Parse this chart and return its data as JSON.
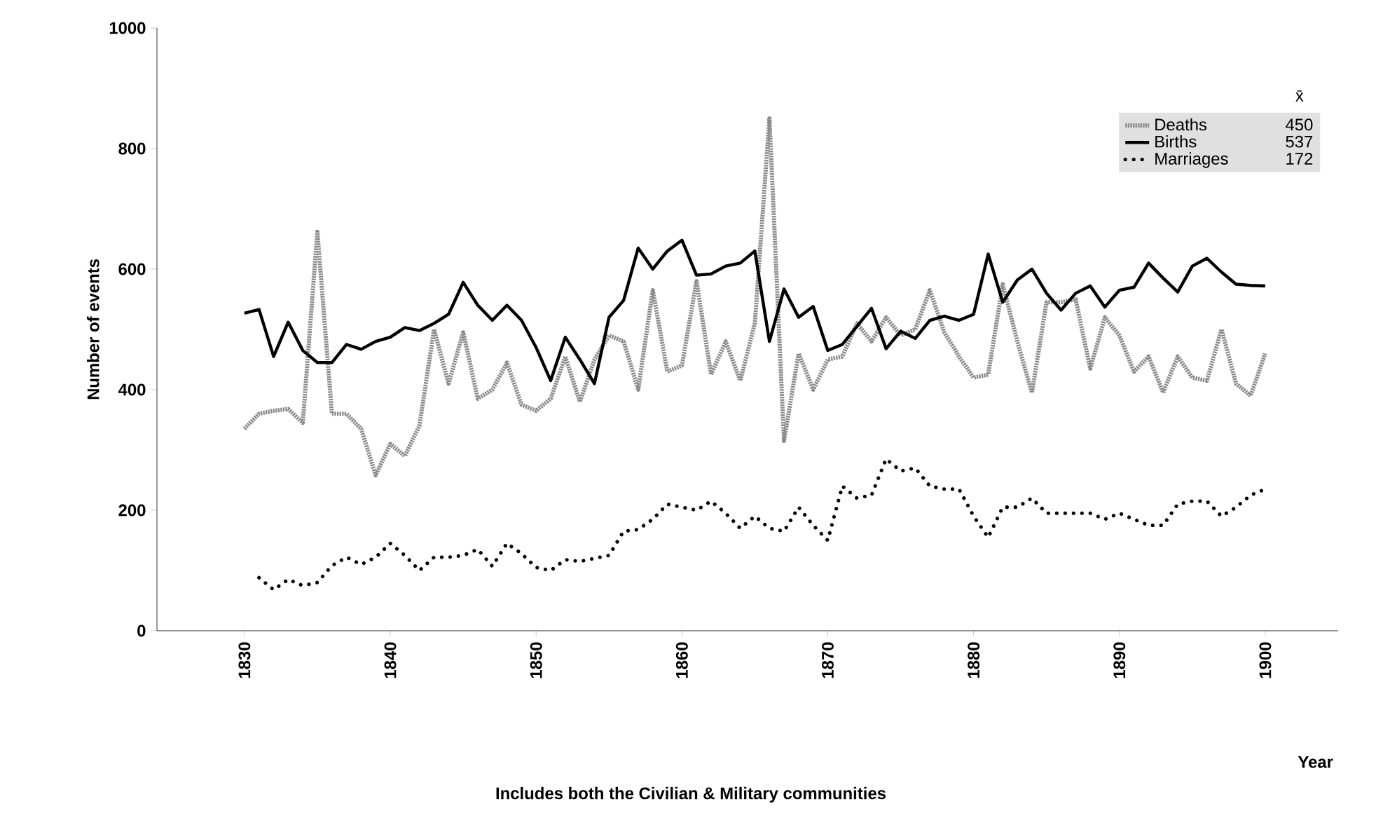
{
  "chart_data": {
    "type": "line",
    "xlabel": "Year",
    "ylabel": "Number of events",
    "legend_title": "x̄",
    "annotations": [
      "Includes both the Civilian & Military communities",
      "450",
      "537",
      "172"
    ],
    "x": [
      1830,
      1831,
      1832,
      1833,
      1834,
      1835,
      1836,
      1837,
      1838,
      1839,
      1840,
      1841,
      1842,
      1843,
      1844,
      1845,
      1846,
      1847,
      1848,
      1849,
      1850,
      1851,
      1852,
      1853,
      1854,
      1855,
      1856,
      1857,
      1858,
      1859,
      1860,
      1861,
      1862,
      1863,
      1864,
      1865,
      1866,
      1867,
      1868,
      1869,
      1870,
      1871,
      1872,
      1873,
      1874,
      1875,
      1876,
      1877,
      1878,
      1879,
      1880,
      1881,
      1882,
      1883,
      1884,
      1885,
      1886,
      1887,
      1888,
      1889,
      1890,
      1891,
      1892,
      1893,
      1894,
      1895,
      1896,
      1897,
      1898,
      1899,
      1900
    ],
    "series": [
      {
        "name": "Deaths",
        "color": "#8a8a8a",
        "line_style": "dashed",
        "values": [
          335,
          360,
          365,
          368,
          345,
          662,
          360,
          360,
          335,
          258,
          310,
          290,
          340,
          500,
          410,
          495,
          385,
          400,
          445,
          375,
          365,
          385,
          455,
          380,
          450,
          490,
          480,
          400,
          565,
          430,
          440,
          580,
          425,
          480,
          415,
          510,
          850,
          315,
          460,
          400,
          450,
          455,
          510,
          480,
          520,
          490,
          500,
          565,
          495,
          455,
          420,
          425,
          575,
          480,
          395,
          545,
          545,
          550,
          435,
          520,
          490,
          430,
          455,
          395,
          455,
          420,
          415,
          500,
          410,
          390,
          460
        ]
      },
      {
        "name": "Births",
        "color": "#000000",
        "line_style": "solid",
        "values": [
          527,
          533,
          455,
          512,
          465,
          445,
          445,
          475,
          467,
          480,
          487,
          503,
          498,
          510,
          525,
          578,
          540,
          515,
          540,
          515,
          470,
          415,
          487,
          450,
          410,
          520,
          548,
          635,
          600,
          630,
          648,
          590,
          592,
          605,
          610,
          630,
          480,
          567,
          520,
          538,
          465,
          475,
          505,
          535,
          468,
          497,
          485,
          515,
          522,
          515,
          525,
          625,
          545,
          582,
          600,
          560,
          532,
          560,
          572,
          537,
          565,
          570,
          610,
          585,
          562,
          605,
          618,
          595,
          575,
          573,
          572
        ]
      },
      {
        "name": "Marriages",
        "color": "#000000",
        "line_style": "dotted",
        "values": [
          null,
          88,
          68,
          85,
          75,
          80,
          108,
          122,
          110,
          122,
          145,
          125,
          100,
          122,
          122,
          125,
          135,
          107,
          145,
          128,
          105,
          100,
          118,
          115,
          120,
          125,
          165,
          168,
          185,
          210,
          205,
          200,
          215,
          195,
          170,
          190,
          170,
          165,
          205,
          175,
          150,
          240,
          220,
          225,
          285,
          265,
          270,
          240,
          235,
          235,
          190,
          155,
          205,
          205,
          220,
          195,
          195,
          195,
          195,
          185,
          195,
          185,
          175,
          175,
          210,
          215,
          215,
          190,
          205,
          225,
          235
        ]
      }
    ],
    "xlim": [
      1824,
      1905
    ],
    "ylim": [
      0,
      1000
    ],
    "xticks": [
      1830,
      1840,
      1850,
      1860,
      1870,
      1880,
      1890,
      1900
    ],
    "yticks": [
      0,
      200,
      400,
      600,
      800,
      1000
    ],
    "grid": false,
    "legend": "top right",
    "marker": "none"
  }
}
